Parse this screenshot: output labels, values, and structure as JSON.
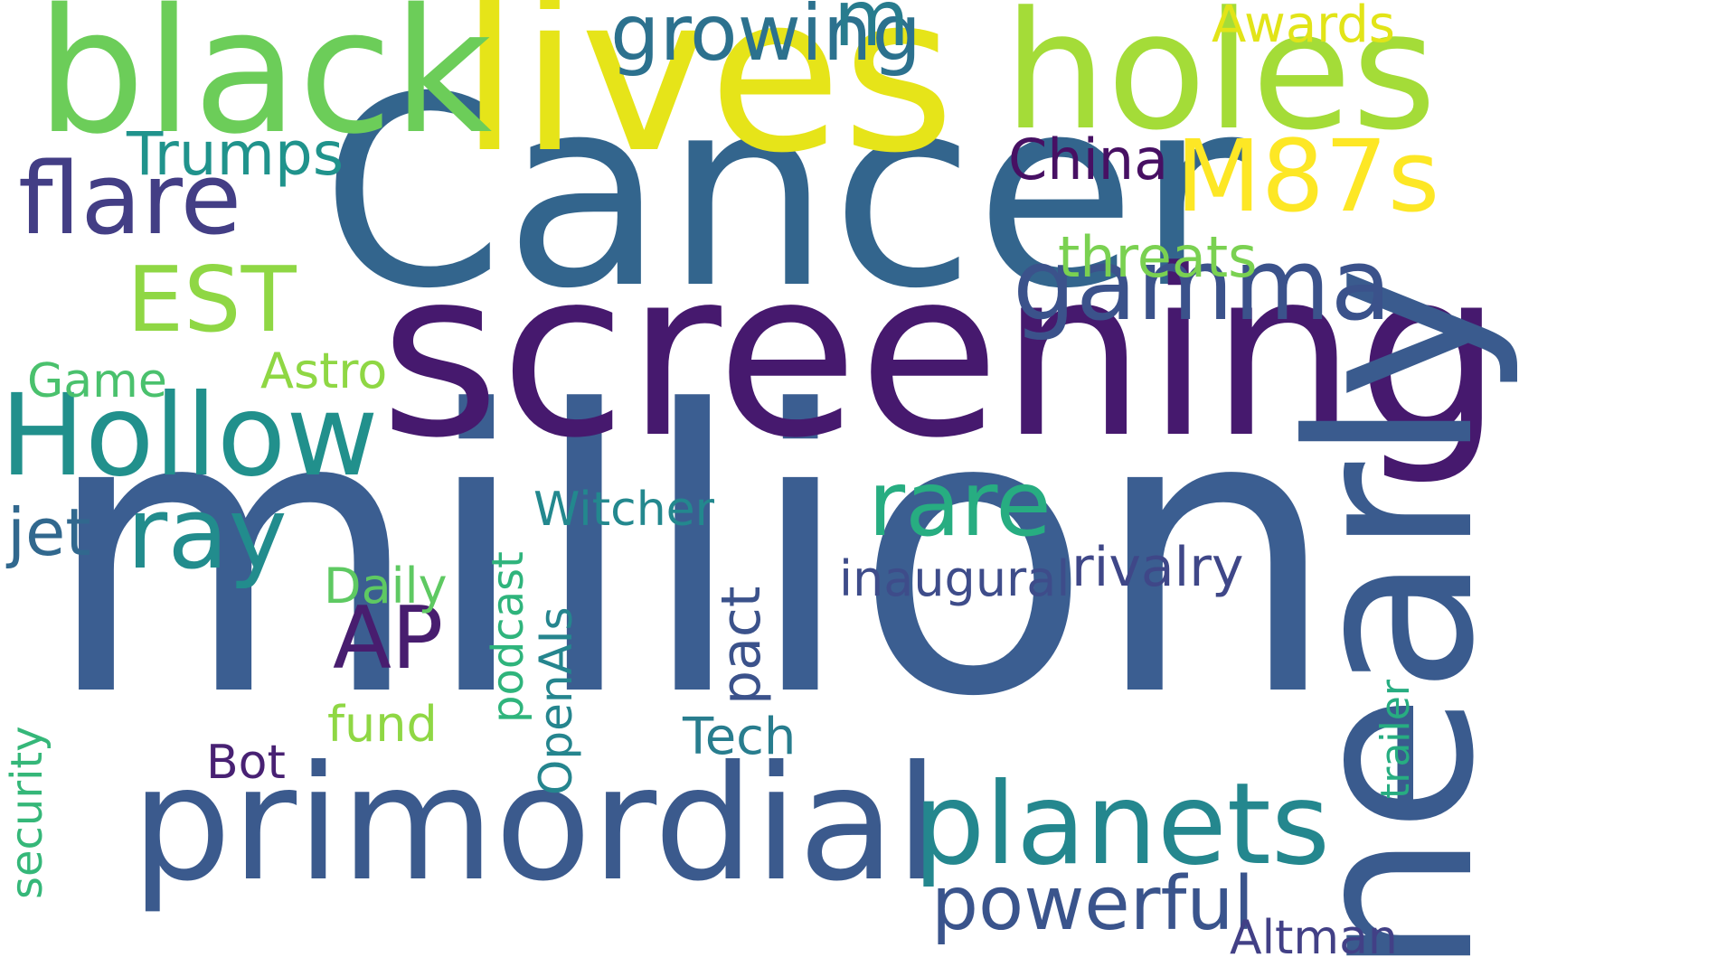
{
  "words": [
    {
      "key": "million",
      "text": "million",
      "color": "#3b5e91",
      "vertical": false
    },
    {
      "key": "cancer",
      "text": "Cancer",
      "color": "#33658d",
      "vertical": false
    },
    {
      "key": "screening",
      "text": "screening",
      "color": "#46196e",
      "vertical": false
    },
    {
      "key": "nearly",
      "text": "nearly",
      "color": "#3a5b8e",
      "vertical": true
    },
    {
      "key": "lives",
      "text": "lives",
      "color": "#e6e419",
      "vertical": false
    },
    {
      "key": "black",
      "text": "black",
      "color": "#6ccd59",
      "vertical": false
    },
    {
      "key": "holes",
      "text": "holes",
      "color": "#a4dc38",
      "vertical": false
    },
    {
      "key": "primordial",
      "text": "primordial",
      "color": "#3b5a8d",
      "vertical": false
    },
    {
      "key": "hollow",
      "text": "Hollow",
      "color": "#21908c",
      "vertical": false
    },
    {
      "key": "planets",
      "text": "planets",
      "color": "#24878e",
      "vertical": false
    },
    {
      "key": "gamma",
      "text": "gamma",
      "color": "#3b528b",
      "vertical": false
    },
    {
      "key": "m87s",
      "text": "M87s",
      "color": "#fde725",
      "vertical": false
    },
    {
      "key": "flare",
      "text": "flare",
      "color": "#433e85",
      "vertical": false
    },
    {
      "key": "ray",
      "text": "ray",
      "color": "#228c8d",
      "vertical": false
    },
    {
      "key": "rare",
      "text": "rare",
      "color": "#27ad81",
      "vertical": false
    },
    {
      "key": "est",
      "text": "EST",
      "color": "#8fd744",
      "vertical": false
    },
    {
      "key": "growing",
      "text": "growing",
      "color": "#2c718e",
      "vertical": false
    },
    {
      "key": "m",
      "text": "m",
      "color": "#287c8e",
      "vertical": false
    },
    {
      "key": "ap",
      "text": "AP",
      "color": "#481d6f",
      "vertical": false
    },
    {
      "key": "powerful",
      "text": "powerful",
      "color": "#3a548c",
      "vertical": false
    },
    {
      "key": "trumps",
      "text": "Trumps",
      "color": "#20938c",
      "vertical": false
    },
    {
      "key": "china",
      "text": "China",
      "color": "#471063",
      "vertical": false
    },
    {
      "key": "threats",
      "text": "threats",
      "color": "#7ad151",
      "vertical": false
    },
    {
      "key": "awards",
      "text": "Awards",
      "color": "#e2e418",
      "vertical": false
    },
    {
      "key": "astro",
      "text": "Astro",
      "color": "#8fd744",
      "vertical": false
    },
    {
      "key": "game",
      "text": "Game",
      "color": "#4ac16d",
      "vertical": false
    },
    {
      "key": "jet",
      "text": "jet",
      "color": "#31688e",
      "vertical": false
    },
    {
      "key": "witcher",
      "text": "Witcher",
      "color": "#23888e",
      "vertical": false
    },
    {
      "key": "daily",
      "text": "Daily",
      "color": "#5ec962",
      "vertical": false
    },
    {
      "key": "inaugural",
      "text": "inaugural",
      "color": "#3e4c8a",
      "vertical": false
    },
    {
      "key": "rivalry",
      "text": "rivalry",
      "color": "#3f4788",
      "vertical": false
    },
    {
      "key": "fund",
      "text": "fund",
      "color": "#8fd744",
      "vertical": false
    },
    {
      "key": "bot",
      "text": "Bot",
      "color": "#482173",
      "vertical": false
    },
    {
      "key": "tech",
      "text": "Tech",
      "color": "#287d8e",
      "vertical": false
    },
    {
      "key": "altman",
      "text": "Altman",
      "color": "#424086",
      "vertical": false
    },
    {
      "key": "podcast",
      "text": "podcast",
      "color": "#2fb47c",
      "vertical": true
    },
    {
      "key": "openais",
      "text": "OpenAIs",
      "color": "#25858e",
      "vertical": true
    },
    {
      "key": "pact",
      "text": "pact",
      "color": "#3b528b",
      "vertical": true
    },
    {
      "key": "security",
      "text": "security",
      "color": "#35b779",
      "vertical": true
    },
    {
      "key": "trailer",
      "text": "trailer",
      "color": "#27ad81",
      "vertical": true
    }
  ]
}
